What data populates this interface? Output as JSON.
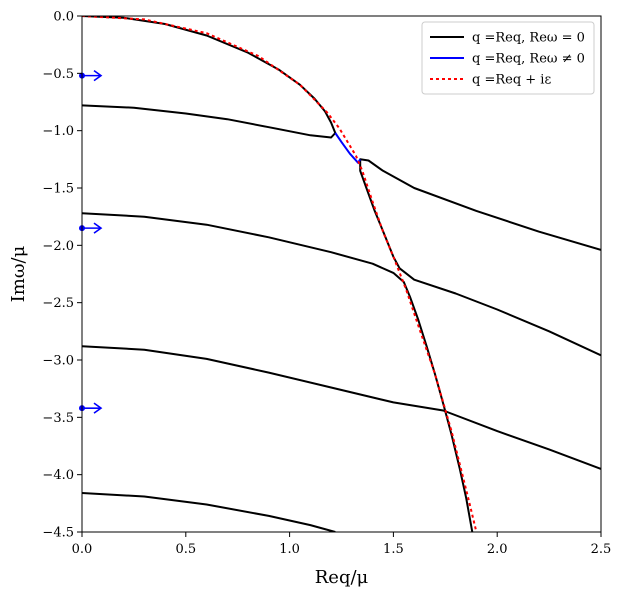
{
  "chart_data": {
    "type": "line",
    "xlabel": "Req/μ",
    "ylabel": "Imω/μ",
    "xlim": [
      0,
      2.5
    ],
    "ylim": [
      -4.5,
      0
    ],
    "xticks": [
      0.0,
      0.5,
      1.0,
      1.5,
      2.0,
      2.5
    ],
    "xtick_labels": [
      "0.0",
      "0.5",
      "1.0",
      "1.5",
      "2.0",
      "2.5"
    ],
    "yticks": [
      0.0,
      -0.5,
      -1.0,
      -1.5,
      -2.0,
      -2.5,
      -3.0,
      -3.5,
      -4.0,
      -4.5
    ],
    "ytick_labels": [
      "0.0",
      "−0.5",
      "−1.0",
      "−1.5",
      "−2.0",
      "−2.5",
      "−3.0",
      "−3.5",
      "−4.0",
      "−4.5"
    ],
    "grid": false,
    "legend_position": "top-right",
    "legend": [
      {
        "label": "q =Req, Reω = 0",
        "color": "#000000",
        "style": "solid"
      },
      {
        "label": "q =Req, Reω ≠ 0",
        "color": "#0000ff",
        "style": "solid"
      },
      {
        "label": "q =Req + iε",
        "color": "#ff0000",
        "style": "dotted"
      }
    ],
    "series": [
      {
        "color": "#000000",
        "style": "solid",
        "points": [
          [
            0.0,
            0.0
          ],
          [
            0.2,
            -0.015
          ],
          [
            0.4,
            -0.07
          ],
          [
            0.6,
            -0.17
          ],
          [
            0.8,
            -0.32
          ],
          [
            0.95,
            -0.47
          ],
          [
            1.05,
            -0.6
          ],
          [
            1.12,
            -0.72
          ],
          [
            1.17,
            -0.83
          ],
          [
            1.2,
            -0.93
          ],
          [
            1.22,
            -1.02
          ],
          [
            1.2,
            -1.06
          ],
          [
            1.1,
            -1.04
          ],
          [
            0.9,
            -0.97
          ],
          [
            0.7,
            -0.9
          ],
          [
            0.5,
            -0.85
          ],
          [
            0.25,
            -0.8
          ],
          [
            0.0,
            -0.78
          ]
        ]
      },
      {
        "color": "#000000",
        "style": "solid",
        "points": [
          [
            2.5,
            -2.04
          ],
          [
            2.2,
            -1.88
          ],
          [
            1.9,
            -1.7
          ],
          [
            1.6,
            -1.5
          ],
          [
            1.45,
            -1.35
          ],
          [
            1.38,
            -1.26
          ],
          [
            1.34,
            -1.25
          ],
          [
            1.34,
            -1.35
          ],
          [
            1.37,
            -1.5
          ],
          [
            1.41,
            -1.7
          ],
          [
            1.46,
            -1.92
          ],
          [
            1.5,
            -2.1
          ],
          [
            1.53,
            -2.2
          ]
        ]
      },
      {
        "color": "#000000",
        "style": "solid",
        "points": [
          [
            0.0,
            -1.72
          ],
          [
            0.3,
            -1.75
          ],
          [
            0.6,
            -1.82
          ],
          [
            0.9,
            -1.93
          ],
          [
            1.2,
            -2.06
          ],
          [
            1.4,
            -2.16
          ],
          [
            1.5,
            -2.24
          ],
          [
            1.55,
            -2.32
          ],
          [
            1.58,
            -2.45
          ],
          [
            1.62,
            -2.65
          ],
          [
            1.66,
            -2.88
          ],
          [
            1.7,
            -3.12
          ],
          [
            1.74,
            -3.38
          ],
          [
            1.78,
            -3.65
          ],
          [
            1.82,
            -3.95
          ],
          [
            1.85,
            -4.2
          ],
          [
            1.88,
            -4.5
          ]
        ]
      },
      {
        "color": "#000000",
        "style": "solid",
        "points": [
          [
            1.53,
            -2.2
          ],
          [
            1.6,
            -2.3
          ],
          [
            1.8,
            -2.42
          ],
          [
            2.0,
            -2.56
          ],
          [
            2.25,
            -2.75
          ],
          [
            2.5,
            -2.96
          ]
        ]
      },
      {
        "color": "#000000",
        "style": "solid",
        "points": [
          [
            0.0,
            -2.88
          ],
          [
            0.3,
            -2.91
          ],
          [
            0.6,
            -2.99
          ],
          [
            0.9,
            -3.11
          ],
          [
            1.2,
            -3.24
          ],
          [
            1.5,
            -3.37
          ],
          [
            1.74,
            -3.44
          ],
          [
            2.0,
            -3.62
          ],
          [
            2.25,
            -3.78
          ],
          [
            2.5,
            -3.95
          ]
        ]
      },
      {
        "color": "#000000",
        "style": "solid",
        "points": [
          [
            0.0,
            -4.16
          ],
          [
            0.3,
            -4.19
          ],
          [
            0.6,
            -4.26
          ],
          [
            0.9,
            -4.36
          ],
          [
            1.1,
            -4.44
          ],
          [
            1.22,
            -4.5
          ]
        ]
      },
      {
        "color": "#0000ff",
        "style": "solid",
        "points": [
          [
            1.22,
            -1.02
          ],
          [
            1.25,
            -1.1
          ],
          [
            1.29,
            -1.2
          ],
          [
            1.33,
            -1.28
          ],
          [
            1.34,
            -1.25
          ]
        ]
      },
      {
        "color": "#ff0000",
        "style": "dotted",
        "points": [
          [
            0.0,
            0.0
          ],
          [
            0.3,
            -0.03
          ],
          [
            0.6,
            -0.15
          ],
          [
            0.85,
            -0.35
          ],
          [
            1.05,
            -0.6
          ],
          [
            1.18,
            -0.84
          ],
          [
            1.24,
            -0.98
          ],
          [
            1.28,
            -1.1
          ],
          [
            1.32,
            -1.22
          ],
          [
            1.35,
            -1.35
          ],
          [
            1.4,
            -1.62
          ],
          [
            1.45,
            -1.88
          ],
          [
            1.5,
            -2.1
          ],
          [
            1.56,
            -2.38
          ],
          [
            1.62,
            -2.7
          ],
          [
            1.7,
            -3.12
          ],
          [
            1.78,
            -3.62
          ],
          [
            1.86,
            -4.2
          ],
          [
            1.9,
            -4.5
          ]
        ]
      }
    ],
    "markers": [
      {
        "type": "arrow",
        "color": "#0000ff",
        "x": 0.0,
        "y": -0.52
      },
      {
        "type": "arrow",
        "color": "#0000ff",
        "x": 0.0,
        "y": -1.85
      },
      {
        "type": "arrow",
        "color": "#0000ff",
        "x": 0.0,
        "y": -3.42
      }
    ]
  }
}
